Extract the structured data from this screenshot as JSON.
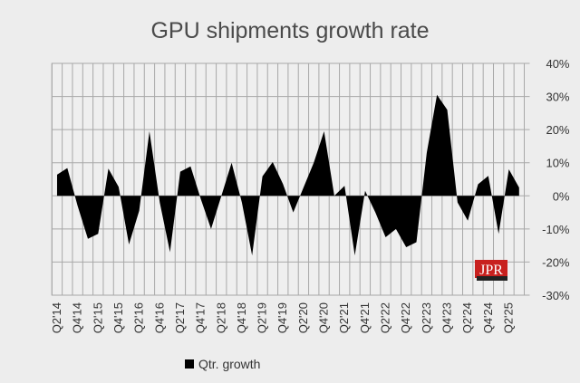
{
  "chart_data": {
    "type": "area",
    "title": "GPU shipments growth rate",
    "xlabel": "",
    "ylabel": "",
    "ylim": [
      -30,
      40
    ],
    "y_ticks": [
      "40%",
      "30%",
      "20%",
      "10%",
      "0%",
      "-10%",
      "-20%",
      "-30%"
    ],
    "y_tick_values": [
      40,
      30,
      20,
      10,
      0,
      -10,
      -20,
      -30
    ],
    "grid": true,
    "legend_position": "bottom-left",
    "categories": [
      "Q2'14",
      "Q3'14",
      "Q4'14",
      "Q1'15",
      "Q2'15",
      "Q3'15",
      "Q4'15",
      "Q1'16",
      "Q2'16",
      "Q3'16",
      "Q4'16",
      "Q1'17",
      "Q2'17",
      "Q3'17",
      "Q4'17",
      "Q1'18",
      "Q2'18",
      "Q3'18",
      "Q4'18",
      "Q1'19",
      "Q2'19",
      "Q3'19",
      "Q4'19",
      "Q1'20",
      "Q2'20",
      "Q3'20",
      "Q4'20",
      "Q1'21",
      "Q2'21",
      "Q3'21",
      "Q4'21",
      "Q1'22",
      "Q2'22",
      "Q3'22",
      "Q4'22",
      "Q1'23",
      "Q2'23",
      "Q3'23",
      "Q4'23",
      "Q1'24",
      "Q2'24",
      "Q3'24",
      "Q4'24",
      "Q1'25",
      "Q2'25",
      "Q3'25"
    ],
    "x_tick_labels": [
      "Q2'14",
      "Q4'14",
      "Q2'15",
      "Q4'15",
      "Q2'16",
      "Q4'16",
      "Q2'17",
      "Q4'17",
      "Q2'18",
      "Q4'18",
      "Q2'19",
      "Q4'19",
      "Q2'20",
      "Q4'20",
      "Q2'21",
      "Q4'21",
      "Q2'22",
      "Q4'22",
      "Q2'23",
      "Q4'23",
      "Q2'24",
      "Q4'24",
      "Q2'25"
    ],
    "series": [
      {
        "name": "Qtr. growth",
        "color": "#000000",
        "values": [
          6.4,
          8.4,
          -3,
          -13,
          -11.5,
          8.2,
          2.7,
          -14.7,
          -4.5,
          19.5,
          -2,
          -17,
          7.3,
          8.9,
          -1,
          -10,
          0,
          10,
          -2,
          -18,
          5.9,
          10.2,
          3.6,
          -5,
          2.5,
          10,
          19.5,
          0,
          3,
          -18,
          1.5,
          -5,
          -12.5,
          -10,
          -15.5,
          -14,
          13,
          30.5,
          26,
          -2,
          -7.5,
          3.5,
          6,
          -11.5,
          8,
          2.5
        ]
      }
    ]
  },
  "logo": {
    "text": "JPR",
    "color": "#c8201e"
  }
}
